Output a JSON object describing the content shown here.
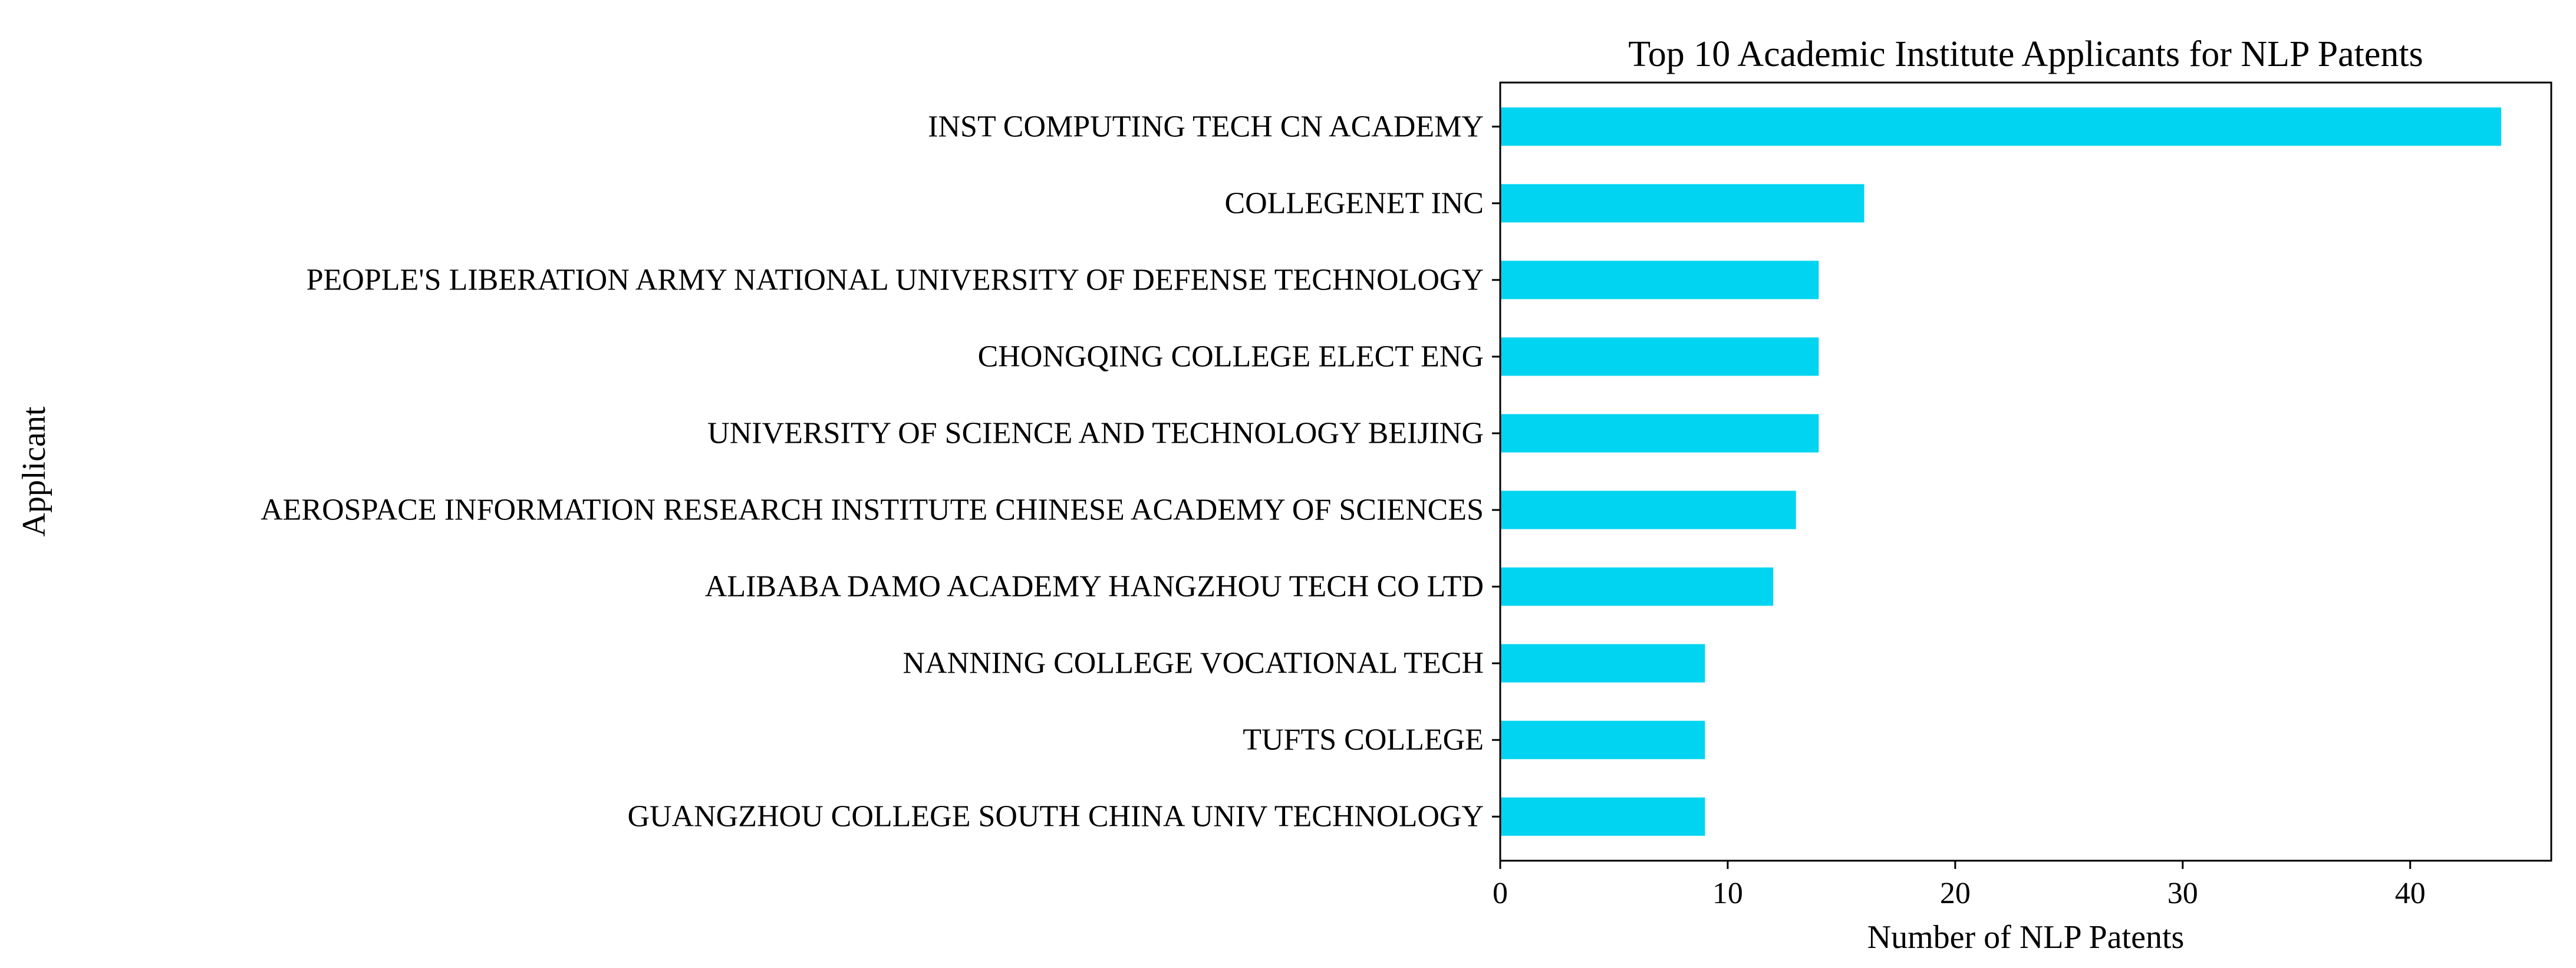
{
  "chart_data": {
    "type": "bar",
    "orientation": "horizontal",
    "title": "Top 10 Academic Institute Applicants for NLP Patents",
    "xlabel": "Number of NLP Patents",
    "ylabel": "Applicant",
    "categories": [
      "INST COMPUTING TECH CN ACADEMY",
      "COLLEGENET INC",
      "PEOPLE'S LIBERATION ARMY NATIONAL UNIVERSITY OF DEFENSE TECHNOLOGY",
      "CHONGQING COLLEGE ELECT ENG",
      "UNIVERSITY OF SCIENCE AND TECHNOLOGY BEIJING",
      "AEROSPACE INFORMATION RESEARCH INSTITUTE CHINESE ACADEMY OF SCIENCES",
      "ALIBABA DAMO ACADEMY HANGZHOU TECH CO LTD",
      "NANNING COLLEGE VOCATIONAL TECH",
      "TUFTS COLLEGE",
      "GUANGZHOU COLLEGE SOUTH CHINA UNIV TECHNOLOGY"
    ],
    "values": [
      44,
      16,
      14,
      14,
      14,
      13,
      12,
      9,
      9,
      9
    ],
    "xlim": [
      0,
      46.2
    ],
    "xticks": [
      0,
      10,
      20,
      30,
      40
    ],
    "xtick_labels": [
      "0",
      "10",
      "20",
      "30",
      "40"
    ],
    "bar_color": "#00d4f0",
    "grid": false,
    "legend": "none"
  }
}
